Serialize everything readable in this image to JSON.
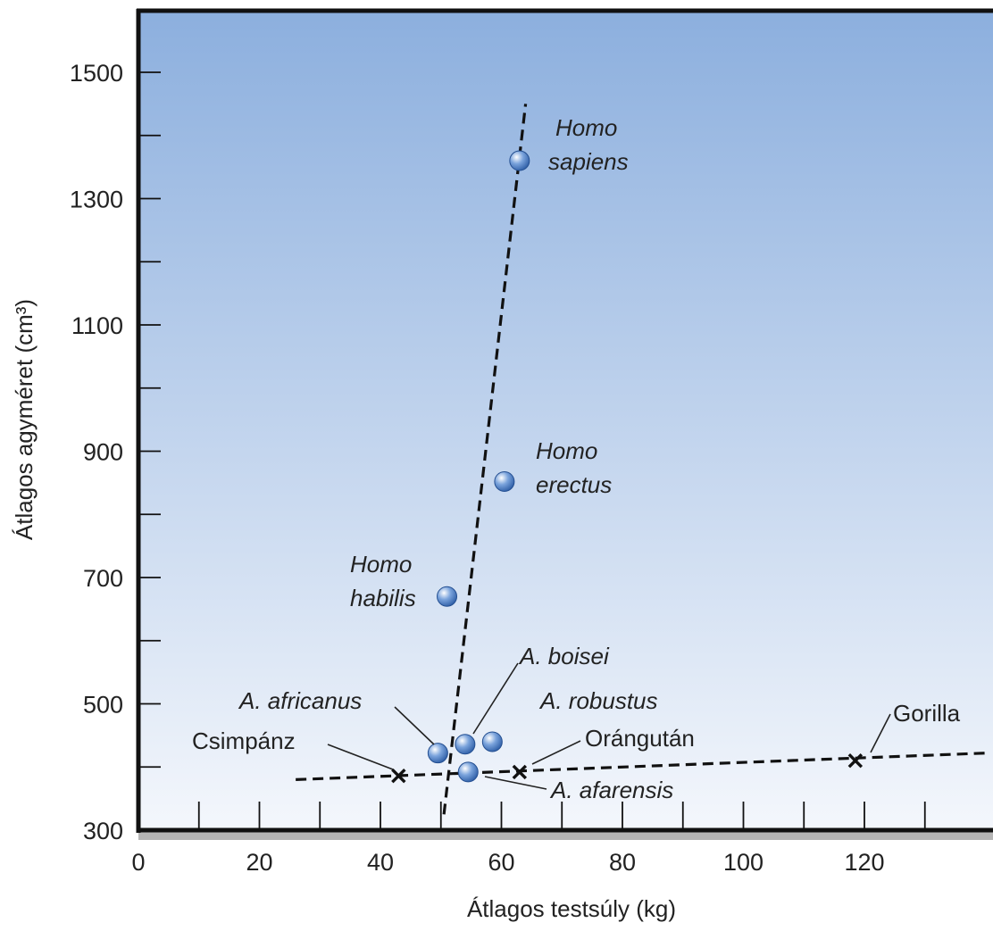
{
  "chart_data": {
    "type": "scatter",
    "title": "",
    "xlabel": "Átlagos testsúly (kg)",
    "ylabel": "Átlagos agyméret (cm³)",
    "xlim": [
      0,
      140
    ],
    "ylim": [
      300,
      1600
    ],
    "x_tick_labels": [
      0,
      20,
      40,
      60,
      80,
      100,
      120
    ],
    "y_tick_labels": [
      300,
      500,
      700,
      900,
      1100,
      1300,
      1500
    ],
    "grid": false,
    "series": [
      {
        "marker": "sphere",
        "points": [
          {
            "label": "Homo sapiens",
            "x": 63,
            "y": 1360
          },
          {
            "label": "Homo erectus",
            "x": 60.5,
            "y": 852
          },
          {
            "label": "Homo habilis",
            "x": 51,
            "y": 670
          },
          {
            "label": "A. boisei",
            "x": 54,
            "y": 436
          },
          {
            "label": "A. robustus",
            "x": 58.5,
            "y": 440
          },
          {
            "label": "A. africanus",
            "x": 49.5,
            "y": 422
          },
          {
            "label": "A. afarensis",
            "x": 54.5,
            "y": 392
          }
        ]
      },
      {
        "marker": "cross",
        "points": [
          {
            "label": "Csimpánz",
            "x": 43,
            "y": 386
          },
          {
            "label": "Orángután",
            "x": 63,
            "y": 392
          },
          {
            "label": "Gorilla",
            "x": 118.5,
            "y": 410
          }
        ]
      }
    ],
    "trend_lines": [
      {
        "style": "dashed",
        "from": [
          50.5,
          325
        ],
        "to": [
          64,
          1450
        ]
      },
      {
        "style": "dashed",
        "from": [
          26,
          380
        ],
        "to": [
          140,
          422
        ]
      }
    ],
    "colors": {
      "background_top": "#8cafde",
      "background_bottom": "#f4f7fc",
      "sphere_light": "#ffffff",
      "sphere_mid": "#7aa3dc",
      "sphere_dark": "#2a5aa3",
      "axis": "#111111",
      "axis_shadow": "#b5b5b5",
      "line": "#111111"
    }
  }
}
